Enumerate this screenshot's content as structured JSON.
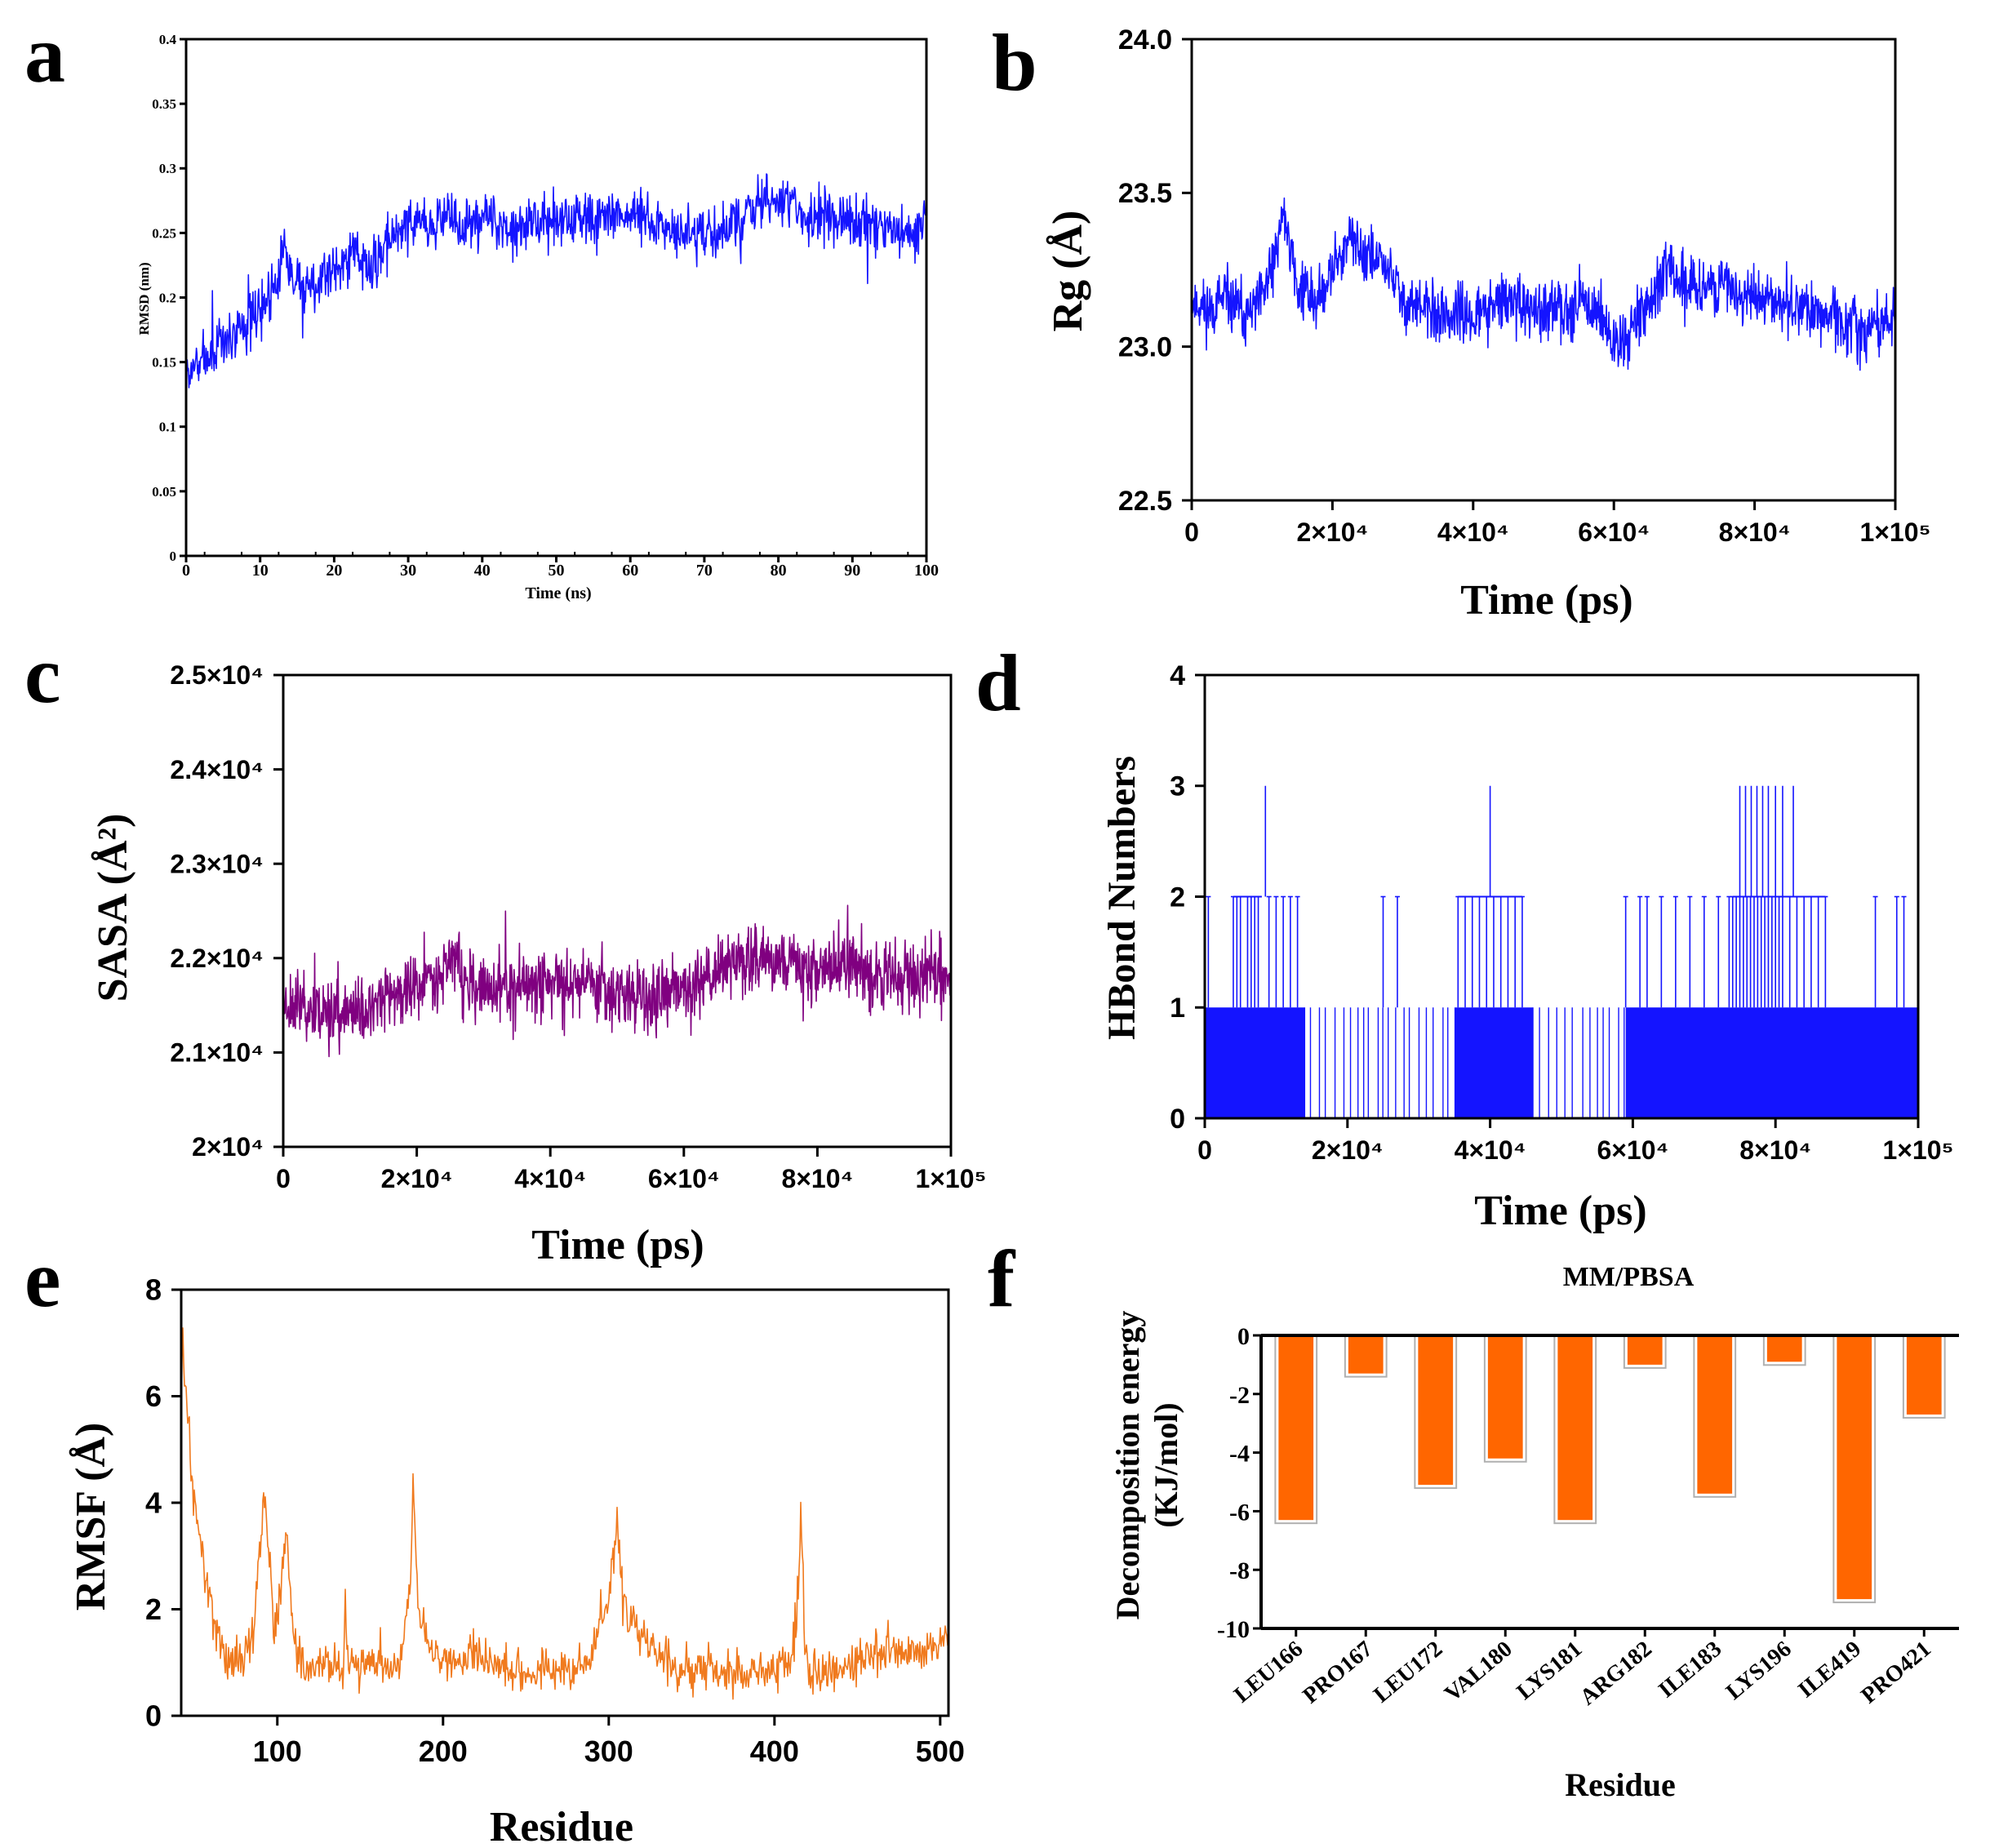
{
  "panel_letters": [
    "a",
    "b",
    "c",
    "d",
    "e",
    "f"
  ],
  "colors": {
    "blue": "#1414ff",
    "purple": "#800080",
    "orange": "#f07a1e",
    "bar_orange": "#ff6600",
    "axis": "#000000"
  },
  "chart_data": [
    {
      "id": "a",
      "type": "line",
      "xlabel": "Time (ns)",
      "ylabel": "RMSD (nm)",
      "xlim": [
        0,
        100
      ],
      "ylim": [
        0,
        0.4
      ],
      "xticks": [
        "0",
        "10",
        "20",
        "30",
        "40",
        "50",
        "60",
        "70",
        "80",
        "90",
        "100"
      ],
      "yticks": [
        "0",
        "0.05",
        "0.1",
        "0.15",
        "0.2",
        "0.25",
        "0.3",
        "0.35",
        "0.4"
      ],
      "series": [
        {
          "name": "RMSD",
          "color": "#1414ff",
          "noise": 0.013,
          "x": [
            0,
            2,
            5,
            8,
            10,
            12,
            13,
            15,
            18,
            20,
            23,
            25,
            28,
            30,
            33,
            35,
            38,
            40,
            45,
            50,
            55,
            60,
            65,
            68,
            70,
            75,
            78,
            80,
            85,
            90,
            95,
            98,
            100
          ],
          "y": [
            0.14,
            0.15,
            0.165,
            0.18,
            0.19,
            0.21,
            0.24,
            0.205,
            0.215,
            0.225,
            0.235,
            0.22,
            0.25,
            0.26,
            0.255,
            0.265,
            0.255,
            0.26,
            0.255,
            0.262,
            0.26,
            0.265,
            0.255,
            0.25,
            0.245,
            0.262,
            0.272,
            0.275,
            0.262,
            0.258,
            0.25,
            0.25,
            0.255
          ]
        }
      ]
    },
    {
      "id": "b",
      "type": "line",
      "xlabel": "Time (ps)",
      "ylabel": "Rg (Å)",
      "xlim": [
        0,
        100000
      ],
      "ylim": [
        22.5,
        24.0
      ],
      "xticks": [
        "0",
        "2×10⁴",
        "4×10⁴",
        "6×10⁴",
        "8×10⁴",
        "1×10⁵"
      ],
      "yticks": [
        "22.5",
        "23.0",
        "23.5",
        "24.0"
      ],
      "series": [
        {
          "name": "Rg",
          "color": "#1414ff",
          "noise": 0.06,
          "x": [
            0,
            2000,
            5000,
            8000,
            10000,
            12000,
            13000,
            15000,
            18000,
            20000,
            22000,
            25000,
            28000,
            30000,
            35000,
            40000,
            45000,
            50000,
            55000,
            58000,
            60000,
            62000,
            65000,
            68000,
            70000,
            75000,
            80000,
            85000,
            90000,
            95000,
            100000
          ],
          "y": [
            23.15,
            23.12,
            23.15,
            23.1,
            23.15,
            23.3,
            23.45,
            23.2,
            23.15,
            23.25,
            23.35,
            23.3,
            23.25,
            23.15,
            23.1,
            23.1,
            23.15,
            23.1,
            23.15,
            23.12,
            23.0,
            23.05,
            23.15,
            23.25,
            23.2,
            23.2,
            23.15,
            23.15,
            23.1,
            23.05,
            23.1
          ]
        }
      ]
    },
    {
      "id": "c",
      "type": "line",
      "xlabel": "Time (ps)",
      "ylabel": "SASA (Å²)",
      "xlim": [
        0,
        100000
      ],
      "ylim": [
        20000,
        25000
      ],
      "xticks": [
        "0",
        "2×10⁴",
        "4×10⁴",
        "6×10⁴",
        "8×10⁴",
        "1×10⁵"
      ],
      "yticks": [
        "2×10⁴",
        "2.1×10⁴",
        "2.2×10⁴",
        "2.3×10⁴",
        "2.4×10⁴",
        "2.5×10⁴"
      ],
      "series": [
        {
          "name": "SASA",
          "color": "#800080",
          "noise": 220,
          "x": [
            0,
            5000,
            10000,
            15000,
            20000,
            24000,
            26000,
            27000,
            30000,
            35000,
            40000,
            45000,
            50000,
            55000,
            60000,
            65000,
            70000,
            75000,
            80000,
            85000,
            90000,
            95000,
            100000
          ],
          "y": [
            21550,
            21450,
            21400,
            21550,
            21700,
            21900,
            22050,
            21700,
            21650,
            21700,
            21750,
            21800,
            21650,
            21550,
            21650,
            21900,
            22000,
            21950,
            21900,
            21950,
            21800,
            21800,
            21850
          ]
        }
      ]
    },
    {
      "id": "d",
      "type": "line",
      "xlabel": "Time (ps)",
      "ylabel": "HBond Numbers",
      "xlim": [
        0,
        100000
      ],
      "ylim": [
        0,
        4
      ],
      "xticks": [
        "0",
        "2×10⁴",
        "4×10⁴",
        "6×10⁴",
        "8×10⁴",
        "1×10⁵"
      ],
      "yticks": [
        "0",
        "1",
        "2",
        "3",
        "4"
      ],
      "series": [
        {
          "name": "HBond",
          "color": "#1414ff",
          "dense_blocks": [
            [
              0,
              14000
            ],
            [
              35000,
              46000
            ],
            [
              59000,
              100000
            ]
          ],
          "sparse_blocks": [
            [
              14000,
              35000
            ],
            [
              46000,
              59000
            ]
          ],
          "x_level2": [
            500,
            4000,
            4500,
            5000,
            6000,
            6500,
            7000,
            7500,
            9000,
            10000,
            11000,
            12000,
            13000,
            25000,
            27000,
            35500,
            36500,
            37500,
            38500,
            39500,
            40500,
            41500,
            42500,
            43500,
            44500,
            59000,
            61000,
            62000,
            64000,
            66000,
            68000,
            70000,
            72000,
            73500,
            74000,
            74500,
            75000,
            75500,
            76000,
            76500,
            77000,
            77500,
            78000,
            78500,
            79000,
            79500,
            80000,
            80500,
            81000,
            82000,
            83000,
            84000,
            85000,
            86000,
            87000,
            94000,
            97000,
            98000
          ],
          "x_level3": [
            8500,
            40000,
            75000,
            75800,
            76600,
            77400,
            78200,
            79000,
            80000,
            81000,
            82500
          ],
          "x_level0_spikes": [
            18000,
            22000,
            30000,
            50000,
            54000,
            58000
          ]
        }
      ]
    },
    {
      "id": "e",
      "type": "line",
      "xlabel": "Residue",
      "ylabel": "RMSF (Å)",
      "xlim": [
        42,
        505
      ],
      "ylim": [
        0,
        8
      ],
      "xticks": [
        "100",
        "200",
        "300",
        "400",
        "500"
      ],
      "yticks": [
        "0",
        "2",
        "4",
        "6",
        "8"
      ],
      "series": [
        {
          "name": "RMSF",
          "color": "#f07a1e",
          "noise": 0.25,
          "x": [
            42,
            43,
            44,
            46,
            48,
            50,
            53,
            56,
            60,
            65,
            70,
            75,
            80,
            85,
            88,
            92,
            95,
            98,
            102,
            106,
            110,
            115,
            120,
            130,
            140,
            141,
            142,
            150,
            160,
            170,
            175,
            180,
            182,
            185,
            190,
            200,
            210,
            220,
            230,
            240,
            250,
            260,
            270,
            280,
            290,
            295,
            300,
            303,
            305,
            308,
            312,
            320,
            330,
            340,
            350,
            360,
            370,
            380,
            390,
            400,
            405,
            410,
            414,
            416,
            418,
            422,
            430,
            440,
            450,
            460,
            470,
            480,
            490,
            500,
            505
          ],
          "y": [
            6.0,
            7.3,
            6.0,
            5.8,
            4.5,
            4.0,
            3.3,
            2.8,
            2.3,
            1.3,
            1.0,
            1.2,
            1.0,
            1.5,
            2.5,
            4.2,
            3.0,
            1.5,
            2.5,
            3.4,
            1.5,
            1.0,
            0.9,
            1.0,
            0.9,
            2.2,
            1.0,
            1.0,
            1.1,
            0.9,
            1.2,
            2.5,
            4.2,
            2.0,
            1.3,
            1.1,
            1.0,
            1.2,
            1.0,
            0.9,
            0.8,
            0.9,
            0.8,
            0.9,
            1.1,
            1.8,
            2.2,
            3.0,
            3.8,
            2.3,
            1.8,
            1.5,
            1.2,
            0.9,
            0.8,
            0.9,
            0.8,
            0.8,
            0.9,
            0.8,
            1.0,
            1.0,
            2.2,
            3.9,
            1.2,
            0.8,
            0.8,
            0.9,
            1.0,
            1.2,
            1.3,
            1.2,
            1.2,
            1.4,
            1.6
          ]
        }
      ]
    },
    {
      "id": "f",
      "type": "bar",
      "title": "MM/PBSA",
      "xlabel": "Residue",
      "ylabel": "Decomposition energy (KJ/mol)",
      "ylabel_line1": "Decomposition energy",
      "ylabel_line2": "(KJ/mol)",
      "ylim": [
        -10,
        0
      ],
      "yticks": [
        "0",
        "-2",
        "-4",
        "-6",
        "-8",
        "-10"
      ],
      "categories": [
        "LEU166",
        "PRO167",
        "LEU172",
        "VAL180",
        "LYS181",
        "ARG182",
        "ILE183",
        "LYS196",
        "ILE419",
        "PRO421"
      ],
      "values": [
        -6.3,
        -1.3,
        -5.1,
        -4.2,
        -6.3,
        -1.0,
        -5.4,
        -0.9,
        -9.0,
        -2.7
      ]
    }
  ]
}
